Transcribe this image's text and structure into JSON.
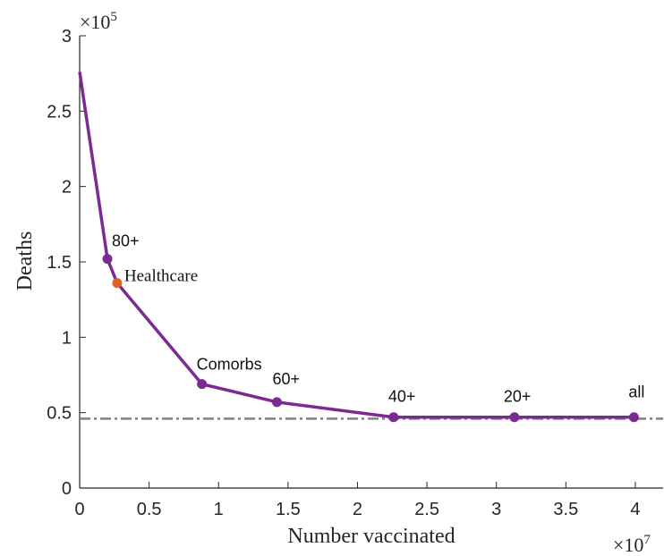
{
  "chart_data": {
    "type": "line",
    "xlabel": "Number vaccinated",
    "ylabel": "Deaths",
    "x_exponent": {
      "base": "×10",
      "power": "7"
    },
    "y_exponent": {
      "base": "×10",
      "power": "5"
    },
    "xlim": [
      0,
      4.2
    ],
    "ylim": [
      0,
      3
    ],
    "x_ticks": [
      0,
      0.5,
      1,
      1.5,
      2,
      2.5,
      3,
      3.5,
      4
    ],
    "x_tick_labels": [
      "0",
      "0.5",
      "1",
      "1.5",
      "2",
      "2.5",
      "3",
      "3.5",
      "4"
    ],
    "y_ticks": [
      0,
      0.5,
      1,
      1.5,
      2,
      2.5,
      3
    ],
    "y_tick_labels": [
      "0",
      "0.5",
      "1",
      "1.5",
      "2",
      "2.5",
      "3"
    ],
    "grid": false,
    "series": [
      {
        "color": "#7b2a92",
        "x": [
          0,
          0.2,
          0.27,
          0.88,
          1.42,
          2.26,
          3.13,
          3.99
        ],
        "y": [
          2.76,
          1.52,
          1.36,
          0.69,
          0.57,
          0.47,
          0.47,
          0.47
        ],
        "markers": [
          {
            "x": 0.2,
            "y": 1.52,
            "label": "80+",
            "color": "#7b2a92",
            "font": "sans"
          },
          {
            "x": 0.27,
            "y": 1.36,
            "label": "Healthcare",
            "color": "#e0622b",
            "font": "serif"
          },
          {
            "x": 0.88,
            "y": 0.69,
            "label": "Comorbs",
            "color": "#7b2a92",
            "font": "sans"
          },
          {
            "x": 1.42,
            "y": 0.57,
            "label": "60+",
            "color": "#7b2a92",
            "font": "sans"
          },
          {
            "x": 2.26,
            "y": 0.47,
            "label": "40+",
            "color": "#7b2a92",
            "font": "sans"
          },
          {
            "x": 3.13,
            "y": 0.47,
            "label": "20+",
            "color": "#7b2a92",
            "font": "sans"
          },
          {
            "x": 3.99,
            "y": 0.47,
            "label": "all",
            "color": "#7b2a92",
            "font": "sans"
          }
        ]
      }
    ],
    "reference_line": {
      "y": 0.46,
      "style": "dash-dot",
      "color": "#808080"
    }
  }
}
